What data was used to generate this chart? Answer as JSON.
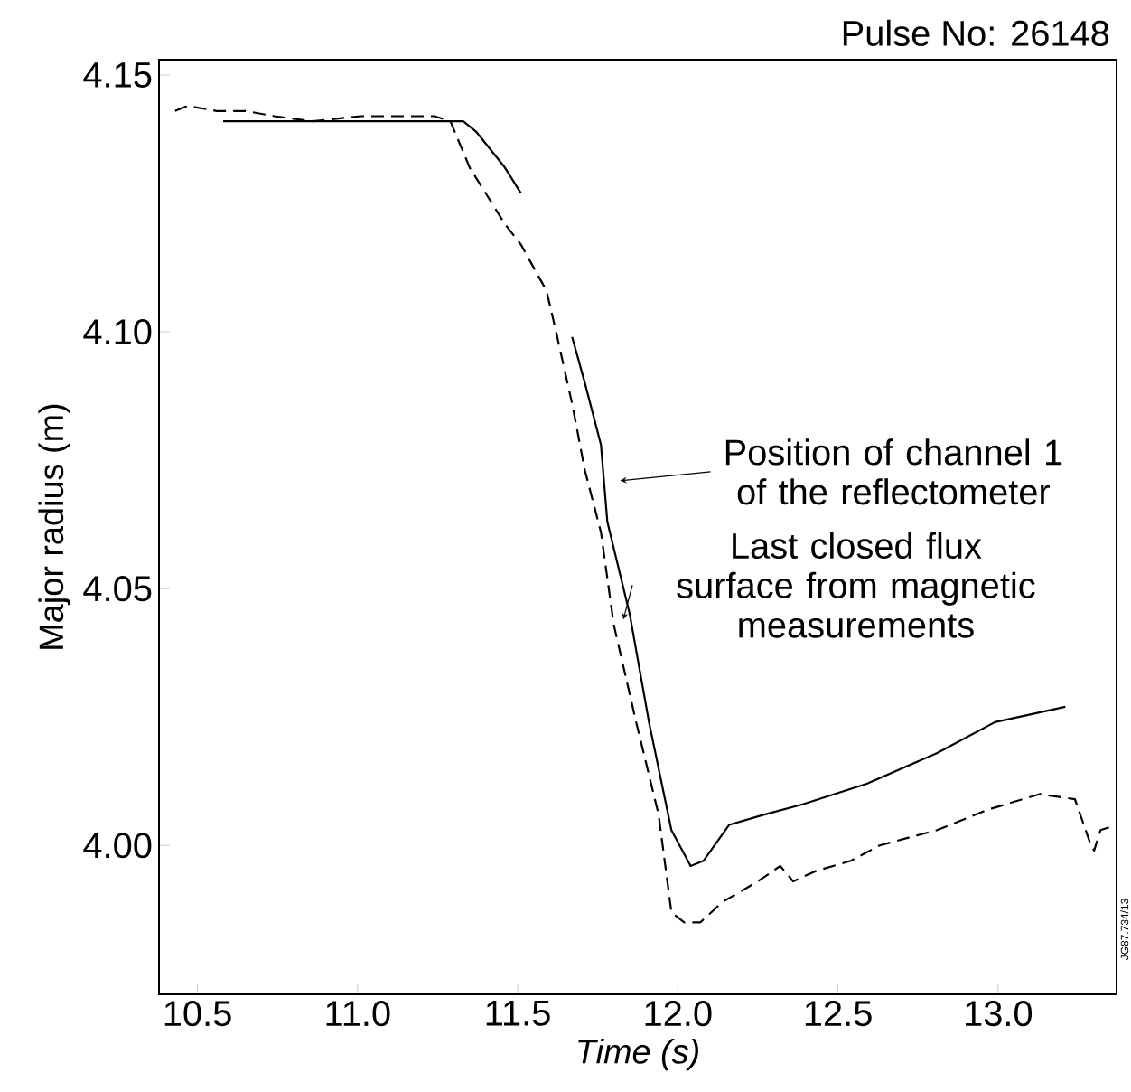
{
  "chart_data": {
    "type": "line",
    "title": "Pulse No: 26148",
    "xlabel": "Time (s)",
    "ylabel": "Major radius (m)",
    "xlim": [
      10.38,
      13.37
    ],
    "ylim": [
      3.971,
      4.153
    ],
    "xticks": [
      10.5,
      {
        "value": 11,
        "label": "11.0"
      },
      11.5,
      {
        "value": 12,
        "label": "12.0"
      },
      12.5,
      {
        "value": 13,
        "label": "13.0"
      }
    ],
    "yticks": [
      {
        "value": 4,
        "label": "4.00"
      },
      4.05,
      {
        "value": 4.1,
        "label": "4.10"
      },
      4.15
    ],
    "series": [
      {
        "color": "#000000",
        "line_style": "solid",
        "x": [
          10.58,
          11.01,
          11.33,
          11.37,
          11.46,
          11.51,
          11.59,
          11.67,
          11.71,
          11.76,
          11.78,
          11.85,
          11.91,
          11.98,
          12.04,
          12.08,
          12.16,
          12.27,
          12.39,
          12.59,
          12.81,
          12.99,
          13.21
        ],
        "values": [
          4.141,
          4.141,
          4.141,
          4.139,
          4.132,
          4.127,
          null,
          4.099,
          4.09,
          4.078,
          4.063,
          4.045,
          4.024,
          4.003,
          3.996,
          3.997,
          4.004,
          4.006,
          4.008,
          4.012,
          4.018,
          4.024,
          4.027
        ]
      },
      {
        "color": "#000000",
        "line_style": "dashed",
        "x": [
          10.43,
          10.47,
          10.56,
          10.65,
          10.74,
          10.86,
          11.01,
          11.24,
          11.29,
          11.35,
          11.46,
          11.51,
          11.59,
          11.62,
          11.67,
          11.71,
          11.76,
          11.8,
          11.87,
          11.94,
          11.98,
          12.02,
          12.07,
          12.14,
          12.25,
          12.32,
          12.36,
          12.43,
          12.54,
          12.63,
          12.81,
          12.97,
          13.13,
          13.24,
          13.29,
          13.3,
          13.32,
          13.37
        ],
        "values": [
          4.143,
          4.144,
          4.143,
          4.143,
          4.142,
          4.141,
          4.142,
          4.142,
          4.141,
          4.132,
          4.121,
          4.117,
          4.108,
          4.1,
          4.086,
          4.073,
          4.061,
          4.043,
          4.024,
          4.006,
          3.987,
          3.985,
          3.985,
          3.989,
          3.993,
          3.996,
          3.993,
          3.995,
          3.997,
          4.0,
          4.003,
          4.007,
          4.01,
          4.009,
          4.0,
          3.999,
          4.003,
          4.004
        ]
      }
    ],
    "annotations": [
      {
        "text": "Position of channel 1 of the reflectometer",
        "x": 11.82,
        "y": 4.071
      },
      {
        "text": "Last closed flux surface from magnetic measurements",
        "x": 11.83,
        "y": 4.044
      },
      "JG87.734/13"
    ]
  }
}
